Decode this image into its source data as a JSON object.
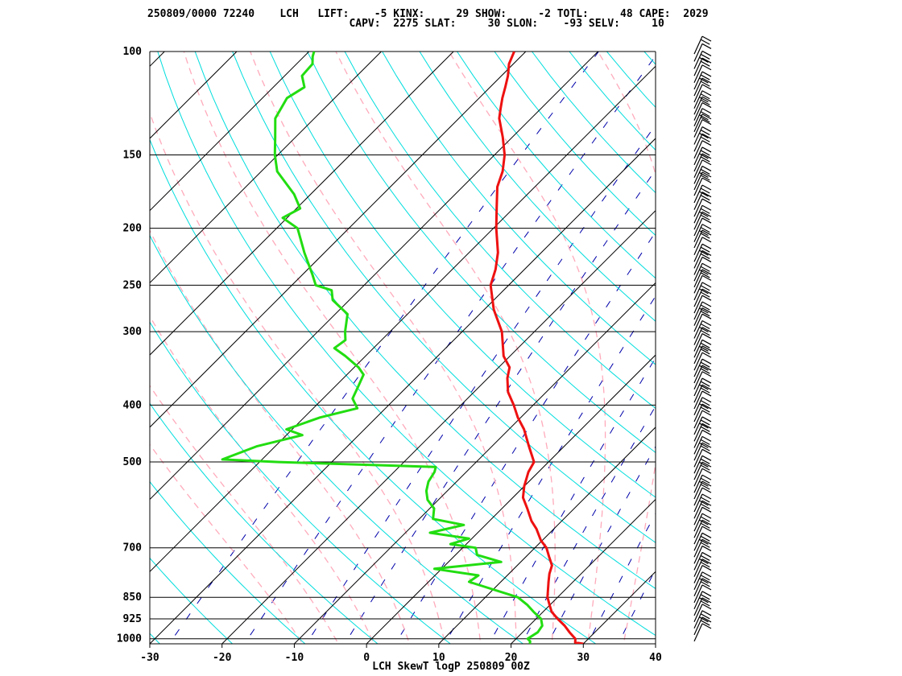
{
  "header": {
    "line1": "250809/0000 72240    LCH   LIFT:    -5 KINX:     29 SHOW:     -2 TOTL:     48 CAPE:  2029",
    "line2": "                                CAPV:  2275 SLAT:     30 SLON:    -93 SELV:     10"
  },
  "footer": "LCH SkewT logP 250809 00Z",
  "colors": {
    "temperature": "#ee1111",
    "dewpoint": "#22dd11",
    "isotherm": "#000000",
    "dry_adiabat": "#00dddd",
    "moist_adiabat": "#ffaabb",
    "mixing_ratio": "#0000aa",
    "wind_barb": "#000000"
  },
  "chart_data": {
    "type": "skewt-logp",
    "xlabel": "",
    "ylabel": "",
    "x_ticks": [
      -30,
      -20,
      -10,
      0,
      10,
      20,
      30,
      40
    ],
    "pressure_ticks": [
      100,
      150,
      200,
      250,
      300,
      400,
      500,
      700,
      850,
      925,
      1000
    ],
    "xlim": [
      -30,
      40
    ],
    "plim": [
      1020,
      100
    ],
    "grid": true,
    "series": [
      {
        "key": "temperature",
        "points": [
          [
            1020,
            30
          ],
          [
            1015,
            28.7
          ],
          [
            1000,
            28.2
          ],
          [
            975,
            26.5
          ],
          [
            950,
            24.9
          ],
          [
            925,
            23.0
          ],
          [
            900,
            21.2
          ],
          [
            875,
            19.9
          ],
          [
            850,
            18.6
          ],
          [
            800,
            16.6
          ],
          [
            775,
            15.6
          ],
          [
            750,
            14.8
          ],
          [
            725,
            13.2
          ],
          [
            700,
            11.6
          ],
          [
            680,
            9.8
          ],
          [
            650,
            7.6
          ],
          [
            630,
            5.8
          ],
          [
            600,
            3.5
          ],
          [
            575,
            1.4
          ],
          [
            550,
            0.0
          ],
          [
            520,
            -1.4
          ],
          [
            500,
            -2.0
          ],
          [
            470,
            -4.9
          ],
          [
            440,
            -7.9
          ],
          [
            420,
            -10.4
          ],
          [
            400,
            -12.7
          ],
          [
            380,
            -15.3
          ],
          [
            360,
            -17.3
          ],
          [
            345,
            -18.5
          ],
          [
            330,
            -20.9
          ],
          [
            300,
            -24.5
          ],
          [
            275,
            -28.7
          ],
          [
            250,
            -32.5
          ],
          [
            235,
            -34.0
          ],
          [
            220,
            -36.0
          ],
          [
            200,
            -39.6
          ],
          [
            185,
            -42.3
          ],
          [
            170,
            -45.2
          ],
          [
            160,
            -46.6
          ],
          [
            150,
            -48.6
          ],
          [
            140,
            -51.3
          ],
          [
            130,
            -54.4
          ],
          [
            125,
            -55.6
          ],
          [
            120,
            -56.8
          ],
          [
            115,
            -57.9
          ],
          [
            110,
            -59.1
          ],
          [
            105,
            -60.6
          ],
          [
            100,
            -61.6
          ]
        ]
      },
      {
        "key": "dewpoint",
        "points": [
          [
            1020,
            22.6
          ],
          [
            1010,
            22.3
          ],
          [
            1000,
            21.6
          ],
          [
            975,
            22.1
          ],
          [
            950,
            21.8
          ],
          [
            925,
            20.7
          ],
          [
            900,
            18.7
          ],
          [
            875,
            16.8
          ],
          [
            850,
            14.5
          ],
          [
            800,
            5.6
          ],
          [
            780,
            6.0
          ],
          [
            760,
            -1.0
          ],
          [
            740,
            7.3
          ],
          [
            720,
            3.0
          ],
          [
            700,
            1.8
          ],
          [
            690,
            -2.2
          ],
          [
            675,
            -0.4
          ],
          [
            660,
            -6.6
          ],
          [
            640,
            -3.0
          ],
          [
            625,
            -8.1
          ],
          [
            600,
            -9.4
          ],
          [
            580,
            -11.5
          ],
          [
            560,
            -12.9
          ],
          [
            540,
            -13.9
          ],
          [
            520,
            -14.4
          ],
          [
            510,
            -14.9
          ],
          [
            500,
            -37.4
          ],
          [
            495,
            -45.5
          ],
          [
            470,
            -42.5
          ],
          [
            450,
            -37.8
          ],
          [
            440,
            -40.8
          ],
          [
            420,
            -37.8
          ],
          [
            405,
            -33.9
          ],
          [
            390,
            -35.9
          ],
          [
            370,
            -36.9
          ],
          [
            355,
            -37.7
          ],
          [
            345,
            -39.4
          ],
          [
            330,
            -42.8
          ],
          [
            320,
            -45.4
          ],
          [
            310,
            -45.0
          ],
          [
            300,
            -46.2
          ],
          [
            280,
            -48.3
          ],
          [
            265,
            -52.3
          ],
          [
            255,
            -53.8
          ],
          [
            250,
            -56.7
          ],
          [
            240,
            -58.6
          ],
          [
            220,
            -62.8
          ],
          [
            200,
            -67.1
          ],
          [
            192,
            -70.6
          ],
          [
            185,
            -69.5
          ],
          [
            175,
            -72.3
          ],
          [
            160,
            -77.8
          ],
          [
            150,
            -80.4
          ],
          [
            140,
            -82.8
          ],
          [
            130,
            -85.4
          ],
          [
            120,
            -86.6
          ],
          [
            115,
            -85.7
          ],
          [
            110,
            -87.6
          ],
          [
            105,
            -87.8
          ],
          [
            102,
            -88.8
          ],
          [
            100,
            -89.3
          ]
        ]
      }
    ]
  }
}
